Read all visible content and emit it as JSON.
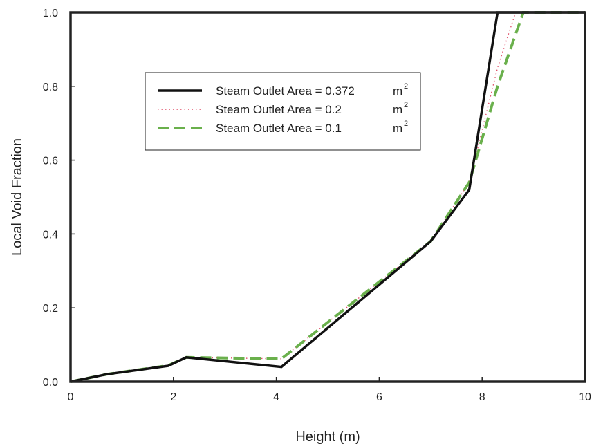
{
  "chart_data": {
    "type": "line",
    "xlabel": "Height (m)",
    "ylabel": "Local Void Fraction",
    "xlim": [
      0,
      10
    ],
    "ylim": [
      0,
      1.0
    ],
    "xticks": [
      "0",
      "2",
      "4",
      "6",
      "8",
      "10"
    ],
    "yticks": [
      "0.0",
      "0.2",
      "0.4",
      "0.6",
      "0.8",
      "1.0"
    ],
    "grid": false,
    "legend_position": "upper-left",
    "series": [
      {
        "name": "Steam Outlet Area = 0.372",
        "unit": "m",
        "unit_exp": "2",
        "color": "#111111",
        "style": "solid",
        "x": [
          0,
          0.7,
          1.9,
          2.25,
          4.1,
          7.0,
          7.75,
          8.3,
          8.8,
          10
        ],
        "y": [
          0,
          0.02,
          0.043,
          0.066,
          0.04,
          0.38,
          0.52,
          1.0,
          1.0,
          1.0
        ]
      },
      {
        "name": "Steam Outlet Area = 0.2",
        "unit": "m",
        "unit_exp": "2",
        "color": "#e0506a",
        "style": "dotted",
        "x": [
          0,
          0.7,
          1.9,
          2.25,
          4.1,
          7.0,
          7.75,
          8.3,
          8.65,
          10
        ],
        "y": [
          0,
          0.02,
          0.044,
          0.066,
          0.062,
          0.38,
          0.54,
          0.85,
          1.0,
          1.0
        ]
      },
      {
        "name": "Steam Outlet Area = 0.1",
        "unit": "m",
        "unit_exp": "2",
        "color": "#6ab04c",
        "style": "dashed",
        "x": [
          0,
          0.7,
          1.9,
          2.25,
          4.1,
          7.0,
          7.75,
          8.3,
          8.8,
          10
        ],
        "y": [
          0,
          0.02,
          0.044,
          0.066,
          0.062,
          0.38,
          0.54,
          0.8,
          1.0,
          1.0
        ]
      }
    ]
  }
}
